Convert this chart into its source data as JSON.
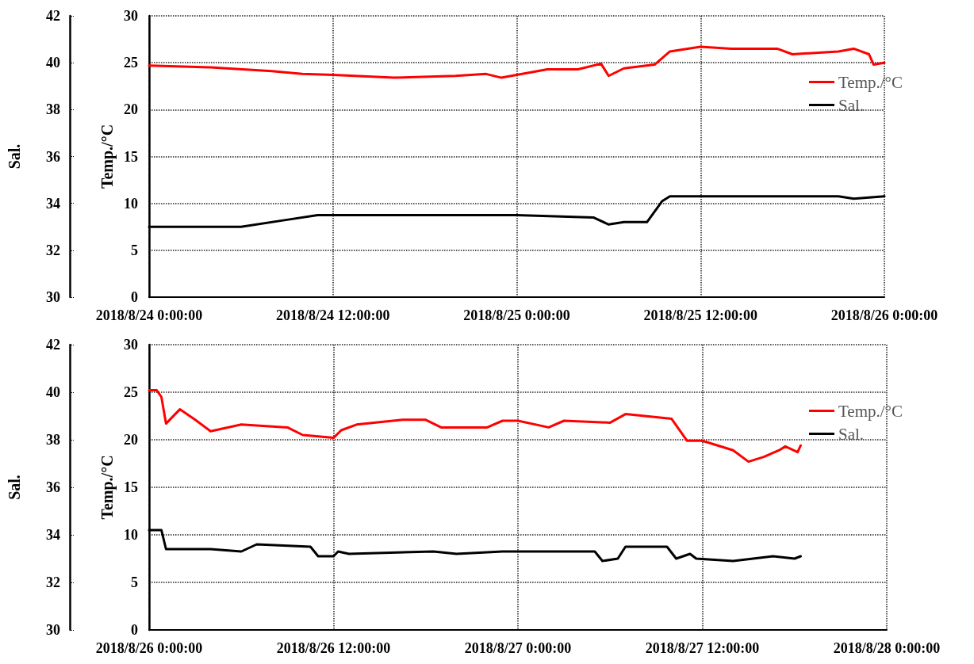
{
  "chart_data": [
    {
      "type": "line",
      "ylabel": "Temp./°C",
      "y2label": "Sal.",
      "xlim": [
        "2018-08-24T00:00",
        "2018-08-26T00:00"
      ],
      "xticks": [
        {
          "value": "2018-08-24T00:00",
          "label": "2018/8/24 0:00:00"
        },
        {
          "value": "2018-08-24T12:00",
          "label": "2018/8/24 12:00:00"
        },
        {
          "value": "2018-08-25T00:00",
          "label": "2018/8/25 0:00:00"
        },
        {
          "value": "2018-08-25T12:00",
          "label": "2018/8/25 12:00:00"
        },
        {
          "value": "2018-08-26T00:00",
          "label": "2018/8/26 0:00:00"
        }
      ],
      "ylim": [
        0,
        30
      ],
      "yticks": [
        0,
        5,
        10,
        15,
        20,
        25,
        30
      ],
      "y2lim": [
        30,
        42
      ],
      "y2ticks": [
        30,
        32,
        34,
        36,
        38,
        40,
        42
      ],
      "grid": true,
      "legend": "top right",
      "series": [
        {
          "name": "Temp./°C",
          "color": "#ff0000",
          "x": [
            "2018-08-24T00:00",
            "2018-08-24T04:00",
            "2018-08-24T08:00",
            "2018-08-24T10:00",
            "2018-08-24T12:00",
            "2018-08-24T16:00",
            "2018-08-24T20:00",
            "2018-08-24T22:00",
            "2018-08-24T23:00",
            "2018-08-25T00:00",
            "2018-08-25T02:00",
            "2018-08-25T04:00",
            "2018-08-25T05:30",
            "2018-08-25T06:00",
            "2018-08-25T07:00",
            "2018-08-25T09:00",
            "2018-08-25T10:00",
            "2018-08-25T12:00",
            "2018-08-25T14:00",
            "2018-08-25T17:00",
            "2018-08-25T18:00",
            "2018-08-25T21:00",
            "2018-08-25T22:00",
            "2018-08-25T23:00",
            "2018-08-25T23:18",
            "2018-08-26T00:00"
          ],
          "values": [
            24.7,
            24.5,
            24.1,
            23.8,
            23.7,
            23.4,
            23.6,
            23.8,
            23.4,
            23.7,
            24.3,
            24.3,
            24.9,
            23.6,
            24.4,
            24.8,
            26.2,
            26.7,
            26.5,
            26.5,
            25.9,
            26.2,
            26.5,
            25.9,
            24.8,
            25.0
          ]
        },
        {
          "name": "Sal.",
          "color": "#000000",
          "axis": "y2",
          "x": [
            "2018-08-24T00:00",
            "2018-08-24T06:00",
            "2018-08-24T09:00",
            "2018-08-24T11:00",
            "2018-08-25T00:00",
            "2018-08-25T05:00",
            "2018-08-25T06:00",
            "2018-08-25T07:00",
            "2018-08-25T08:30",
            "2018-08-25T09:30",
            "2018-08-25T10:00",
            "2018-08-25T12:00",
            "2018-08-25T21:00",
            "2018-08-25T22:00",
            "2018-08-26T00:00"
          ],
          "values": [
            33.0,
            33.0,
            33.3,
            33.5,
            33.5,
            33.4,
            33.1,
            33.2,
            33.2,
            34.1,
            34.3,
            34.3,
            34.3,
            34.2,
            34.3
          ]
        }
      ]
    },
    {
      "type": "line",
      "ylabel": "Temp./°C",
      "y2label": "Sal.",
      "xlim": [
        "2018-08-26T00:00",
        "2018-08-28T00:00"
      ],
      "xticks": [
        {
          "value": "2018-08-26T00:00",
          "label": "2018/8/26 0:00:00"
        },
        {
          "value": "2018-08-26T12:00",
          "label": "2018/8/26 12:00:00"
        },
        {
          "value": "2018-08-27T00:00",
          "label": "2018/8/27 0:00:00"
        },
        {
          "value": "2018-08-27T12:00",
          "label": "2018/8/27 12:00:00"
        },
        {
          "value": "2018-08-28T00:00",
          "label": "2018/8/28 0:00:00"
        }
      ],
      "ylim": [
        0,
        30
      ],
      "yticks": [
        0,
        5,
        10,
        15,
        20,
        25,
        30
      ],
      "y2lim": [
        30,
        42
      ],
      "y2ticks": [
        30,
        32,
        34,
        36,
        38,
        40,
        42
      ],
      "grid": true,
      "legend": "top right",
      "series": [
        {
          "name": "Temp./°C",
          "color": "#ff0000",
          "x": [
            "2018-08-26T00:00",
            "2018-08-26T00:30",
            "2018-08-26T00:48",
            "2018-08-26T01:06",
            "2018-08-26T02:00",
            "2018-08-26T03:00",
            "2018-08-26T04:00",
            "2018-08-26T06:00",
            "2018-08-26T09:00",
            "2018-08-26T10:00",
            "2018-08-26T12:00",
            "2018-08-26T12:30",
            "2018-08-26T13:30",
            "2018-08-26T16:30",
            "2018-08-26T18:00",
            "2018-08-26T19:00",
            "2018-08-26T22:00",
            "2018-08-26T23:00",
            "2018-08-27T00:00",
            "2018-08-27T02:00",
            "2018-08-27T03:00",
            "2018-08-27T06:00",
            "2018-08-27T07:00",
            "2018-08-27T10:00",
            "2018-08-27T11:00",
            "2018-08-27T12:00",
            "2018-08-27T14:00",
            "2018-08-27T15:00",
            "2018-08-27T16:00",
            "2018-08-27T17:00",
            "2018-08-27T17:24",
            "2018-08-27T18:12",
            "2018-08-27T18:24"
          ],
          "values": [
            25.2,
            25.2,
            24.5,
            21.7,
            23.2,
            22.1,
            20.9,
            21.6,
            21.3,
            20.5,
            20.2,
            21.0,
            21.6,
            22.1,
            22.1,
            21.3,
            21.3,
            22.0,
            22.0,
            21.3,
            22.0,
            21.8,
            22.7,
            22.2,
            19.9,
            19.9,
            18.9,
            17.7,
            18.2,
            18.9,
            19.3,
            18.7,
            19.4
          ]
        },
        {
          "name": "Sal.",
          "color": "#000000",
          "axis": "y2",
          "x": [
            "2018-08-26T00:00",
            "2018-08-26T00:48",
            "2018-08-26T01:06",
            "2018-08-26T04:00",
            "2018-08-26T06:00",
            "2018-08-26T07:00",
            "2018-08-26T10:30",
            "2018-08-26T11:00",
            "2018-08-26T12:00",
            "2018-08-26T12:18",
            "2018-08-26T13:00",
            "2018-08-26T18:30",
            "2018-08-26T20:00",
            "2018-08-26T23:00",
            "2018-08-27T00:00",
            "2018-08-27T05:00",
            "2018-08-27T05:30",
            "2018-08-27T06:30",
            "2018-08-27T07:00",
            "2018-08-27T09:42",
            "2018-08-27T10:18",
            "2018-08-27T11:12",
            "2018-08-27T11:36",
            "2018-08-27T14:00",
            "2018-08-27T16:36",
            "2018-08-27T18:00",
            "2018-08-27T18:24"
          ],
          "values": [
            34.2,
            34.2,
            33.4,
            33.4,
            33.3,
            33.6,
            33.5,
            33.1,
            33.1,
            33.3,
            33.2,
            33.3,
            33.2,
            33.3,
            33.3,
            33.3,
            32.9,
            33.0,
            33.5,
            33.5,
            33.0,
            33.2,
            33.0,
            32.9,
            33.1,
            33.0,
            33.1
          ]
        }
      ]
    }
  ]
}
